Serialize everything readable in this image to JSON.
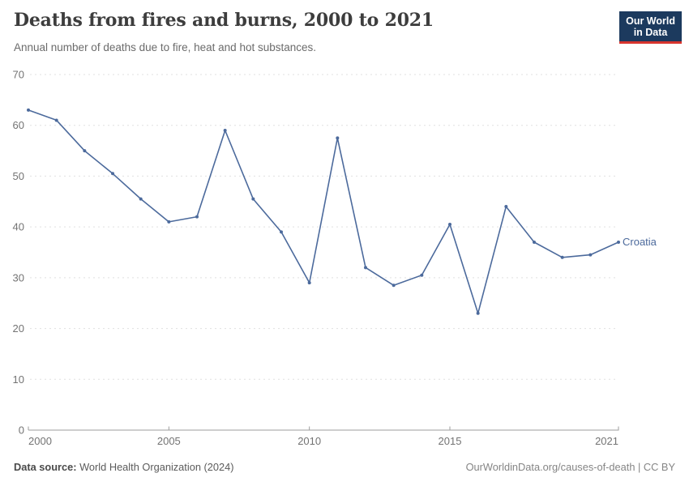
{
  "header": {
    "title": "Deaths from fires and burns, 2000 to 2021",
    "subtitle": "Annual number of deaths due to fire, heat and hot substances.",
    "logo": {
      "line1": "Our World",
      "line2": "in Data"
    }
  },
  "chart_data": {
    "type": "line",
    "title": "Deaths from fires and burns, 2000 to 2021",
    "x": [
      2000,
      2001,
      2002,
      2003,
      2004,
      2005,
      2006,
      2007,
      2008,
      2009,
      2010,
      2011,
      2012,
      2013,
      2014,
      2015,
      2016,
      2017,
      2018,
      2019,
      2020,
      2021
    ],
    "series": [
      {
        "name": "Croatia",
        "values": [
          63,
          61,
          55,
          50.5,
          45.5,
          41,
          42,
          59,
          45.5,
          39,
          29,
          57.5,
          32,
          28.5,
          30.5,
          40.5,
          23,
          44,
          37,
          34,
          34.5,
          37
        ],
        "color": "#4c6a9c"
      }
    ],
    "xlabel": "",
    "ylabel": "",
    "ylim": [
      0,
      70
    ],
    "yticks": [
      0,
      10,
      20,
      30,
      40,
      50,
      60,
      70
    ],
    "xticks": [
      2000,
      2005,
      2010,
      2015,
      2021
    ],
    "grid": "horizontal-dashed",
    "legend": "end-of-line-label"
  },
  "footer": {
    "source_label": "Data source:",
    "source_value": " World Health Organization (2024)",
    "credit": "OurWorldinData.org/causes-of-death | CC BY"
  },
  "colors": {
    "line": "#4c6a9c",
    "grid": "#e0e0e0",
    "axis": "#9e9e9e",
    "tick_label": "#737373",
    "logo_bg": "#1c3a5e",
    "logo_red": "#d8352e"
  }
}
